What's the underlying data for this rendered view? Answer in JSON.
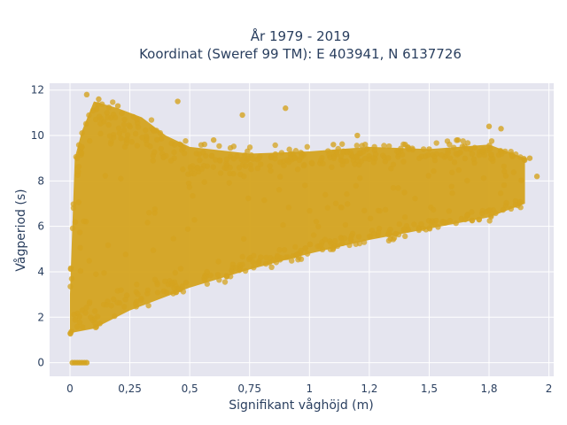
{
  "chart_data": {
    "type": "scatter",
    "title_line1": "År 1979 - 2019",
    "title_line2": "Koordinat (Sweref 99 TM): E 403941, N 6137726",
    "xlabel": "Signifikant våghöjd (m)",
    "ylabel": "Vågperiod (s)",
    "xlim": [
      -0.085,
      2.02
    ],
    "ylim": [
      -0.6,
      12.3
    ],
    "x_ticks": [
      {
        "value": 0,
        "label": "0"
      },
      {
        "value": 0.25,
        "label": "0,25"
      },
      {
        "value": 0.5,
        "label": "0,5"
      },
      {
        "value": 0.75,
        "label": "0,75"
      },
      {
        "value": 1,
        "label": "1"
      },
      {
        "value": 1.25,
        "label": "1,2"
      },
      {
        "value": 1.5,
        "label": "1,5"
      },
      {
        "value": 1.75,
        "label": "1,8"
      },
      {
        "value": 2,
        "label": "2"
      }
    ],
    "y_ticks": [
      {
        "value": 0,
        "label": "0"
      },
      {
        "value": 2,
        "label": "2"
      },
      {
        "value": 4,
        "label": "4"
      },
      {
        "value": 6,
        "label": "6"
      },
      {
        "value": 8,
        "label": "8"
      },
      {
        "value": 10,
        "label": "10"
      },
      {
        "value": 12,
        "label": "12"
      }
    ],
    "grid": true,
    "legend": false,
    "marker_color": "#d4a31f",
    "plot_bg": "#e5e5ef",
    "series": [
      {
        "envelope_upper": [
          [
            0.0,
            3.0
          ],
          [
            0.02,
            9.0
          ],
          [
            0.05,
            10.2
          ],
          [
            0.1,
            11.5
          ],
          [
            0.2,
            11.2
          ],
          [
            0.3,
            10.8
          ],
          [
            0.4,
            10.0
          ],
          [
            0.5,
            9.5
          ],
          [
            0.75,
            9.2
          ],
          [
            1.0,
            9.3
          ],
          [
            1.25,
            9.5
          ],
          [
            1.5,
            9.4
          ],
          [
            1.75,
            9.6
          ],
          [
            1.9,
            9.0
          ]
        ],
        "envelope_lower": [
          [
            0.0,
            1.3
          ],
          [
            0.1,
            1.5
          ],
          [
            0.25,
            2.3
          ],
          [
            0.5,
            3.3
          ],
          [
            0.75,
            4.1
          ],
          [
            1.0,
            4.8
          ],
          [
            1.25,
            5.4
          ],
          [
            1.5,
            5.9
          ],
          [
            1.75,
            6.4
          ],
          [
            1.9,
            7.0
          ]
        ],
        "ridge": [
          [
            0.0,
            2.5
          ],
          [
            0.25,
            5.0
          ],
          [
            0.5,
            6.0
          ],
          [
            1.0,
            6.8
          ],
          [
            1.5,
            7.3
          ],
          [
            1.9,
            7.8
          ]
        ],
        "points": [
          [
            0.07,
            11.8
          ],
          [
            0.12,
            11.6
          ],
          [
            0.2,
            11.3
          ],
          [
            0.45,
            11.5
          ],
          [
            0.72,
            10.9
          ],
          [
            0.9,
            11.2
          ],
          [
            1.2,
            10.0
          ],
          [
            1.4,
            9.6
          ],
          [
            1.62,
            9.8
          ],
          [
            1.75,
            10.4
          ],
          [
            1.8,
            10.3
          ],
          [
            1.92,
            9.0
          ],
          [
            1.95,
            8.2
          ],
          [
            1.5,
            9.4
          ],
          [
            1.1,
            9.6
          ],
          [
            0.6,
            9.8
          ],
          [
            0.05,
            9.5
          ],
          [
            0.03,
            9.0
          ],
          [
            0.35,
            10.2
          ],
          [
            0.28,
            10.7
          ]
        ],
        "zero_period": [
          0.01,
          0.02,
          0.03,
          0.04,
          0.05,
          0.06,
          0.07
        ]
      }
    ]
  }
}
